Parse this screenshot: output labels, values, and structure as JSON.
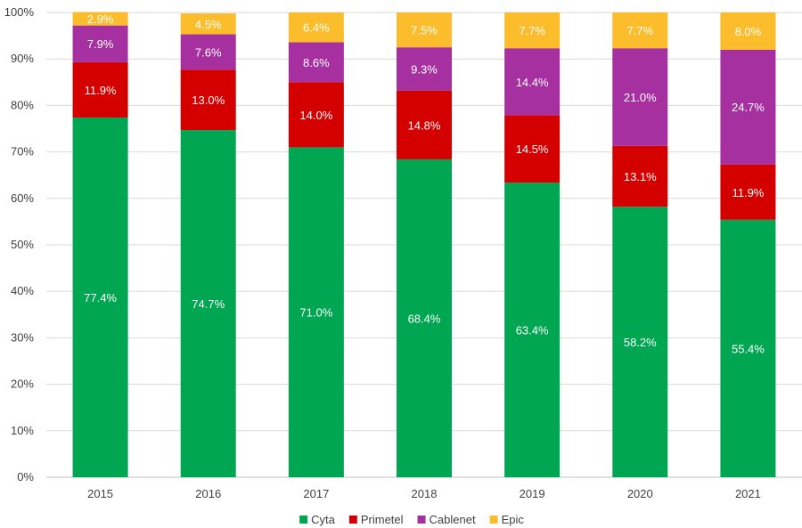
{
  "chart_data": {
    "type": "bar",
    "stacked": true,
    "title": "",
    "xlabel": "",
    "ylabel": "",
    "ylim": [
      0,
      100
    ],
    "y_ticks": [
      "0%",
      "10%",
      "20%",
      "30%",
      "40%",
      "50%",
      "60%",
      "70%",
      "80%",
      "90%",
      "100%"
    ],
    "categories": [
      "2015",
      "2016",
      "2017",
      "2018",
      "2019",
      "2020",
      "2021"
    ],
    "series": [
      {
        "name": "Cyta",
        "color": "#00a651",
        "values": [
          77.4,
          74.7,
          71.0,
          68.4,
          63.4,
          58.2,
          55.4
        ],
        "labels": [
          "77.4%",
          "74.7%",
          "71.0%",
          "68.4%",
          "63.4%",
          "58.2%",
          "55.4%"
        ]
      },
      {
        "name": "Primetel",
        "color": "#d40000",
        "values": [
          11.9,
          13.0,
          14.0,
          14.8,
          14.5,
          13.1,
          11.9
        ],
        "labels": [
          "11.9%",
          "13.0%",
          "14.0%",
          "14.8%",
          "14.5%",
          "13.1%",
          "11.9%"
        ]
      },
      {
        "name": "Cablenet",
        "color": "#a6309f",
        "values": [
          7.9,
          7.6,
          8.6,
          9.3,
          14.4,
          21.0,
          24.7
        ],
        "labels": [
          "7.9%",
          "7.6%",
          "8.6%",
          "9.3%",
          "14.4%",
          "21.0%",
          "24.7%"
        ]
      },
      {
        "name": "Epic",
        "color": "#fcbd2c",
        "values": [
          2.9,
          4.5,
          6.4,
          7.5,
          7.7,
          7.7,
          8.0
        ],
        "labels": [
          "2.9%",
          "4.5%",
          "6.4%",
          "7.5%",
          "7.7%",
          "7.7%",
          "8.0%"
        ]
      }
    ],
    "legend_position": "bottom",
    "grid": true
  }
}
